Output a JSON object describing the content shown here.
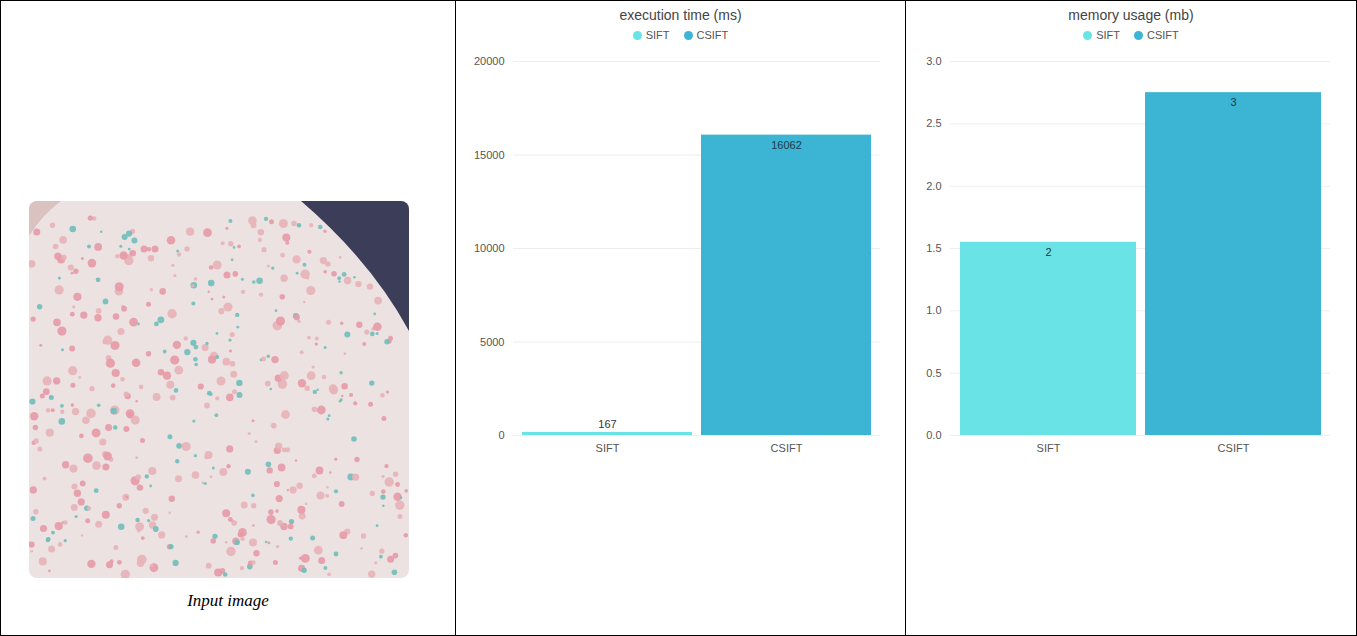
{
  "image_panel": {
    "caption": "Input image"
  },
  "chart_data": [
    {
      "type": "bar",
      "title": "execution time (ms)",
      "categories": [
        "SIFT",
        "CSIFT"
      ],
      "values": [
        167,
        16062
      ],
      "colors": [
        "#6ae3e6",
        "#3cb4d4"
      ],
      "ylim": [
        0,
        20000
      ],
      "yticks": [
        0,
        5000,
        10000,
        15000,
        20000
      ],
      "grid": true,
      "legend": "top",
      "data_labels": true
    },
    {
      "type": "bar",
      "title": "memory usage (mb)",
      "categories": [
        "SIFT",
        "CSIFT"
      ],
      "values": [
        1.55,
        2.75
      ],
      "value_labels": [
        "2",
        "3"
      ],
      "colors": [
        "#6ae3e6",
        "#3cb4d4"
      ],
      "ylim": [
        0,
        3
      ],
      "yticks": [
        {
          "value": 0,
          "label": "0.0"
        },
        {
          "value": 0.5,
          "label": "0.5"
        },
        {
          "value": 1,
          "label": "1.0"
        },
        {
          "value": 1.5,
          "label": "1.5"
        },
        {
          "value": 2,
          "label": "2.0"
        },
        {
          "value": 2.5,
          "label": "2.5"
        },
        {
          "value": 3,
          "label": "3.0"
        }
      ],
      "grid": true,
      "legend": "top",
      "data_labels": true
    }
  ]
}
